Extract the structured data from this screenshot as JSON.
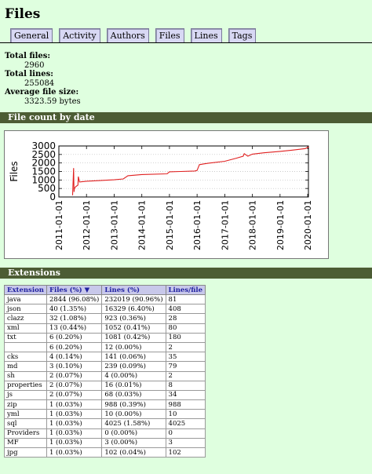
{
  "page": {
    "title": "Files"
  },
  "nav": {
    "tabs": [
      "General",
      "Activity",
      "Authors",
      "Files",
      "Lines",
      "Tags"
    ]
  },
  "stats": [
    {
      "label": "Total files:",
      "value": "2960"
    },
    {
      "label": "Total lines:",
      "value": "255084"
    },
    {
      "label": "Average file size:",
      "value": "3323.59 bytes"
    }
  ],
  "sections": {
    "file_count": "File count by date",
    "extensions": "Extensions"
  },
  "chart_data": {
    "type": "line",
    "ylabel": "Files",
    "xlabel": "",
    "title": "",
    "ylim": [
      0,
      3000
    ],
    "yticks": [
      0,
      500,
      1000,
      1500,
      2000,
      2500,
      3000
    ],
    "xticks": [
      "2011-01-01",
      "2012-01-01",
      "2013-01-01",
      "2014-01-01",
      "2015-01-01",
      "2016-01-01",
      "2017-01-01",
      "2018-01-01",
      "2019-01-01",
      "2020-01-01"
    ],
    "grid": true,
    "color": "#e02020",
    "series": [
      {
        "x": [
          "2011-07-01",
          "2011-07-15",
          "2011-07-20",
          "2011-07-25",
          "2011-08-10",
          "2011-09-10",
          "2011-09-15",
          "2011-10-01",
          "2012-01-01",
          "2012-06-01",
          "2013-01-01",
          "2013-05-01",
          "2013-07-01",
          "2014-01-01",
          "2014-12-01",
          "2015-01-01",
          "2015-06-01",
          "2015-12-01",
          "2016-01-01",
          "2016-02-01",
          "2016-04-01",
          "2016-06-01",
          "2017-01-01",
          "2017-06-01",
          "2017-09-01",
          "2017-09-15",
          "2017-11-01",
          "2018-01-01",
          "2018-06-01",
          "2019-01-01",
          "2019-06-01",
          "2019-12-01",
          "2020-01-15"
        ],
        "y": [
          100,
          1700,
          300,
          500,
          600,
          700,
          1200,
          880,
          930,
          960,
          1010,
          1060,
          1250,
          1320,
          1360,
          1480,
          1500,
          1530,
          1560,
          1900,
          1950,
          1990,
          2100,
          2280,
          2400,
          2550,
          2400,
          2520,
          2600,
          2680,
          2750,
          2850,
          2950
        ]
      }
    ]
  },
  "extensions": {
    "headers": [
      "Extension",
      "Files (%)",
      "Lines (%)",
      "Lines/file"
    ],
    "sort_indicator": "▼",
    "rows": [
      [
        "java",
        "2844 (96.08%)",
        "232019 (90.96%)",
        "81"
      ],
      [
        "json",
        "40 (1.35%)",
        "16329 (6.40%)",
        "408"
      ],
      [
        "clazz",
        "32 (1.08%)",
        "923 (0.36%)",
        "28"
      ],
      [
        "xml",
        "13 (0.44%)",
        "1052 (0.41%)",
        "80"
      ],
      [
        "txt",
        "6 (0.20%)",
        "1081 (0.42%)",
        "180"
      ],
      [
        "",
        "6 (0.20%)",
        "12 (0.00%)",
        "2"
      ],
      [
        "cks",
        "4 (0.14%)",
        "141 (0.06%)",
        "35"
      ],
      [
        "md",
        "3 (0.10%)",
        "239 (0.09%)",
        "79"
      ],
      [
        "sh",
        "2 (0.07%)",
        "4 (0.00%)",
        "2"
      ],
      [
        "properties",
        "2 (0.07%)",
        "16 (0.01%)",
        "8"
      ],
      [
        "js",
        "2 (0.07%)",
        "68 (0.03%)",
        "34"
      ],
      [
        "zip",
        "1 (0.03%)",
        "988 (0.39%)",
        "988"
      ],
      [
        "yml",
        "1 (0.03%)",
        "10 (0.00%)",
        "10"
      ],
      [
        "sql",
        "1 (0.03%)",
        "4025 (1.58%)",
        "4025"
      ],
      [
        "Providers",
        "1 (0.03%)",
        "0 (0.00%)",
        "0"
      ],
      [
        "MF",
        "1 (0.03%)",
        "3 (0.00%)",
        "3"
      ],
      [
        "jpg",
        "1 (0.03%)",
        "102 (0.04%)",
        "102"
      ]
    ]
  }
}
